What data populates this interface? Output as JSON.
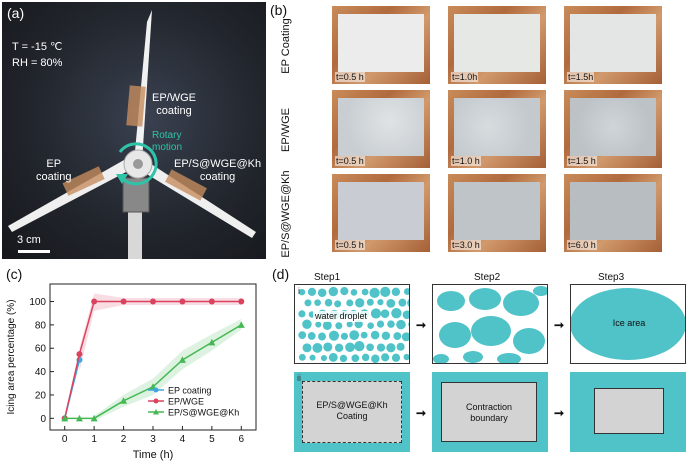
{
  "panel_a": {
    "label": "(a)",
    "temperature": "T = -15 ℃",
    "humidity": "RH = 80%",
    "coating_top_line1": "EP/WGE",
    "coating_top_line2": "coating",
    "rotary_line1": "Rotary",
    "rotary_line2": "motion",
    "coating_left_line1": "EP",
    "coating_left_line2": "coating",
    "coating_right_line1": "EP/S@WGE@Kh",
    "coating_right_line2": "coating",
    "scale": "3 cm"
  },
  "panel_b": {
    "label": "(b)",
    "rows": [
      {
        "label": "EP Coating",
        "times": [
          "t=0.5 h",
          "t=1.0h",
          "t=1.5h"
        ]
      },
      {
        "label": "EP/WGE",
        "times": [
          "t=0.5 h",
          "t=1.0 h",
          "t=1.5 h"
        ]
      },
      {
        "label": "EP/S@WGE@Kh",
        "times": [
          "t=0.5 h",
          "t=3.0 h",
          "t=6.0 h"
        ]
      }
    ]
  },
  "panel_c": {
    "label": "(c)",
    "chart_data": {
      "type": "line",
      "xlabel": "Time (h)",
      "ylabel": "Icing area percentage (%)",
      "xlim": [
        -0.5,
        6.5
      ],
      "ylim": [
        -10,
        115
      ],
      "xticks": [
        0,
        1,
        2,
        3,
        4,
        5,
        6
      ],
      "yticks": [
        0,
        20,
        40,
        60,
        80,
        100
      ],
      "legend_position": "bottom-right",
      "series": [
        {
          "name": "EP coating",
          "color": "#3fa7e0",
          "marker": "circle",
          "x": [
            0,
            0.5
          ],
          "y": [
            0,
            50
          ]
        },
        {
          "name": "EP/WGE",
          "color": "#d9435e",
          "marker": "circle",
          "x": [
            0,
            0.5,
            1,
            2,
            3,
            4,
            5,
            6
          ],
          "y": [
            0,
            55,
            100,
            100,
            100,
            100,
            100,
            100
          ]
        },
        {
          "name": "EP/S@WGE@Kh",
          "color": "#45b854",
          "marker": "triangle",
          "x": [
            0,
            0.5,
            1,
            2,
            3,
            4,
            5,
            6
          ],
          "y": [
            0,
            0,
            0,
            15,
            27,
            50,
            65,
            80
          ]
        }
      ]
    }
  },
  "panel_d": {
    "label": "(d)",
    "steps": [
      "Step1",
      "Step2",
      "Step3"
    ],
    "row_i": "i",
    "row_ii": "ii",
    "water_droplet": "water droplet",
    "ice_area": "Ice area",
    "coating_line1": "EP/S@WGE@Kh",
    "coating_line2": "Coating",
    "contraction_line1": "Contraction",
    "contraction_line2": "boundary",
    "accent_color": "#4fc3c8"
  }
}
